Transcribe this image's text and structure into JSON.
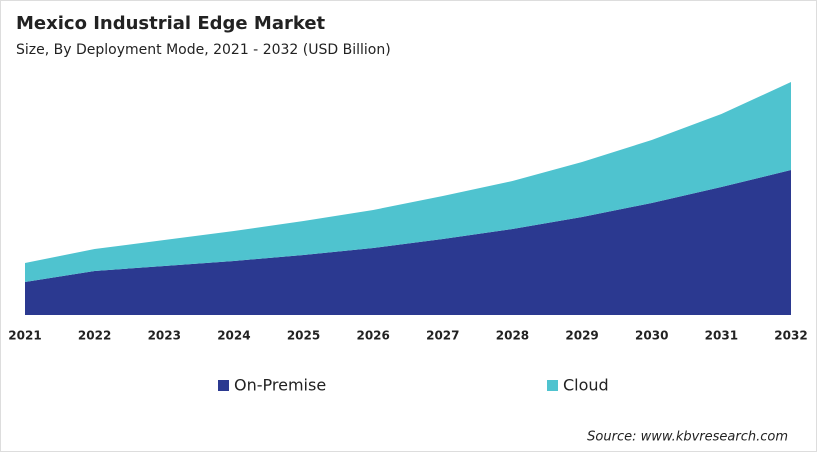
{
  "chart_data": {
    "type": "stacked-area",
    "title": "Mexico Industrial Edge Market",
    "subtitle": "Size, By Deployment Mode, 2021 - 2032 (USD Billion)",
    "categories": [
      "2021",
      "2022",
      "2023",
      "2024",
      "2025",
      "2026",
      "2027",
      "2028",
      "2029",
      "2030",
      "2031",
      "2032"
    ],
    "series": [
      {
        "name": "On-Premise",
        "color": "#2b3990",
        "values": [
          33,
          44,
          49,
          54,
          60,
          67,
          76,
          86,
          98,
          112,
          128,
          145
        ]
      },
      {
        "name": "Cloud",
        "color": "#4fc3cf",
        "values": [
          19,
          22,
          26,
          30,
          34,
          38,
          43,
          48,
          55,
          63,
          73,
          88
        ]
      }
    ],
    "source": "Source: www.kbvresearch.com"
  }
}
